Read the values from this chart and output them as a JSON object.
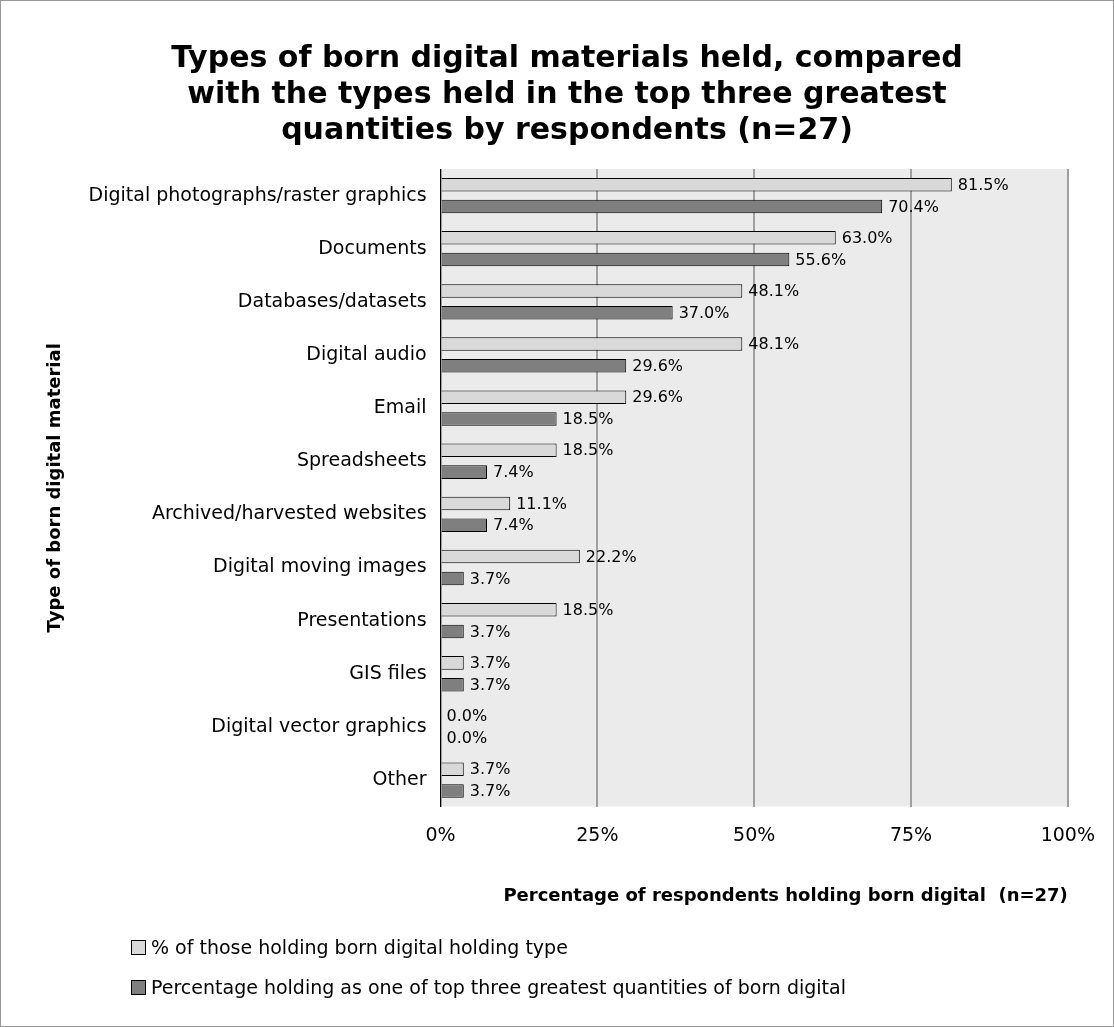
{
  "chart_data": {
    "type": "bar",
    "orientation": "horizontal",
    "title": "Types of born digital materials held, compared with the types held in the top three greatest quantities by respondents (n=27)",
    "xlabel": "Percentage of respondents holding born digital  (n=27)",
    "ylabel": "Type of born digital material",
    "categories": [
      "Digital photographs/raster graphics",
      "Documents",
      "Databases/datasets",
      "Digital audio",
      "Email",
      "Spreadsheets",
      "Archived/harvested websites",
      "Digital moving images",
      "Presentations",
      "GIS files",
      "Digital vector graphics",
      "Other"
    ],
    "series": [
      {
        "name": "% of those holding born digital holding type",
        "color": "#d9d9d9",
        "values": [
          81.5,
          63.0,
          48.1,
          48.1,
          29.6,
          18.5,
          11.1,
          22.2,
          18.5,
          3.7,
          0.0,
          3.7
        ],
        "value_labels": [
          "81.5%",
          "63.0%",
          "48.1%",
          "48.1%",
          "29.6%",
          "18.5%",
          "11.1%",
          "22.2%",
          "18.5%",
          "3.7%",
          "0.0%",
          "3.7%"
        ]
      },
      {
        "name": "Percentage holding as one of top three greatest quantities of born digital",
        "color": "#7f7f7f",
        "values": [
          70.4,
          55.6,
          37.0,
          29.6,
          18.5,
          7.4,
          7.4,
          3.7,
          3.7,
          3.7,
          0.0,
          3.7
        ],
        "value_labels": [
          "70.4%",
          "55.6%",
          "37.0%",
          "29.6%",
          "18.5%",
          "7.4%",
          "7.4%",
          "3.7%",
          "3.7%",
          "3.7%",
          "0.0%",
          "3.7%"
        ]
      }
    ],
    "xlim": [
      0,
      100
    ],
    "xticks": [
      {
        "value": 0,
        "label": "0%"
      },
      {
        "value": 25,
        "label": "25%"
      },
      {
        "value": 50,
        "label": "50%"
      },
      {
        "value": 75,
        "label": "75%"
      },
      {
        "value": 100,
        "label": "100%"
      }
    ],
    "grid": "x",
    "legend": "bottom"
  }
}
